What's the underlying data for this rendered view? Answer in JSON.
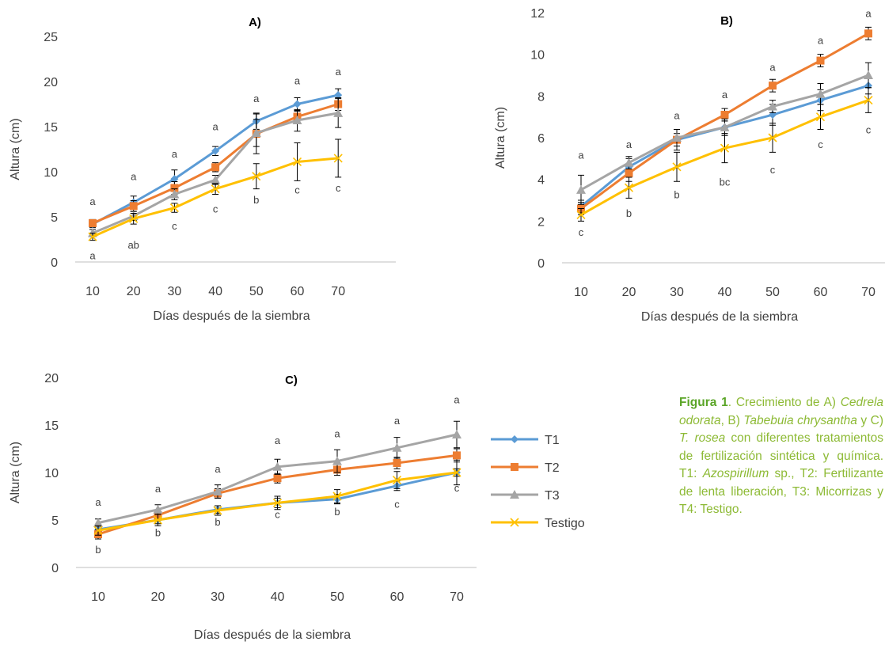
{
  "chart_data": [
    {
      "id": "A",
      "type": "line",
      "title": "A)",
      "xlabel": "Días después de la siembra",
      "ylabel": "Altura (cm)",
      "x": [
        10,
        20,
        30,
        40,
        50,
        60,
        70
      ],
      "ylim": [
        0,
        25
      ],
      "yticks": [
        0,
        5,
        10,
        15,
        20,
        25
      ],
      "series": [
        {
          "name": "T1",
          "values": [
            4.2,
            6.6,
            9.2,
            12.3,
            15.6,
            17.5,
            18.5
          ],
          "errors": [
            0.4,
            0.7,
            1.0,
            0.5,
            0.9,
            0.7,
            0.7
          ]
        },
        {
          "name": "T2",
          "values": [
            4.3,
            6.2,
            8.2,
            10.5,
            14.2,
            16.1,
            17.5
          ],
          "errors": [
            0.4,
            0.6,
            0.7,
            0.5,
            2.2,
            0.6,
            0.7
          ]
        },
        {
          "name": "T3",
          "values": [
            3.2,
            5.1,
            7.5,
            9.1,
            14.3,
            15.7,
            16.5
          ],
          "errors": [
            0.4,
            0.5,
            0.6,
            0.5,
            1.5,
            1.2,
            1.6
          ]
        },
        {
          "name": "Testigo",
          "values": [
            2.8,
            4.8,
            6.0,
            8.1,
            9.5,
            11.1,
            11.5
          ],
          "errors": [
            0.4,
            0.6,
            0.5,
            0.6,
            1.4,
            2.1,
            2.1
          ]
        }
      ],
      "annotations": [
        {
          "x": 10,
          "y": 6.3,
          "text": "a"
        },
        {
          "x": 10,
          "y": 0.3,
          "text": "a"
        },
        {
          "x": 20,
          "y": 9.1,
          "text": "a"
        },
        {
          "x": 20,
          "y": 1.5,
          "text": "ab"
        },
        {
          "x": 30,
          "y": 11.6,
          "text": "a"
        },
        {
          "x": 30,
          "y": 3.6,
          "text": "c"
        },
        {
          "x": 40,
          "y": 14.6,
          "text": "a"
        },
        {
          "x": 40,
          "y": 5.5,
          "text": "c"
        },
        {
          "x": 50,
          "y": 17.7,
          "text": "a"
        },
        {
          "x": 50,
          "y": 6.5,
          "text": "b"
        },
        {
          "x": 60,
          "y": 19.7,
          "text": "a"
        },
        {
          "x": 60,
          "y": 7.6,
          "text": "c"
        },
        {
          "x": 70,
          "y": 20.7,
          "text": "a"
        },
        {
          "x": 70,
          "y": 7.8,
          "text": "c"
        }
      ]
    },
    {
      "id": "B",
      "type": "line",
      "title": "B)",
      "xlabel": "Días después de la siembra",
      "ylabel": "Altura (cm)",
      "x": [
        10,
        20,
        30,
        40,
        50,
        60,
        70
      ],
      "ylim": [
        0,
        12
      ],
      "yticks": [
        0,
        2,
        4,
        6,
        8,
        10,
        12
      ],
      "series": [
        {
          "name": "T1",
          "values": [
            2.7,
            4.6,
            5.9,
            6.5,
            7.1,
            7.8,
            8.5
          ],
          "errors": [
            0.3,
            0.4,
            0.5,
            0.3,
            0.5,
            0.5,
            0.4
          ]
        },
        {
          "name": "T2",
          "values": [
            2.6,
            4.3,
            5.9,
            7.1,
            8.5,
            9.7,
            11.0
          ],
          "errors": [
            0.3,
            0.4,
            0.3,
            0.3,
            0.3,
            0.3,
            0.3
          ]
        },
        {
          "name": "T3",
          "values": [
            3.5,
            4.8,
            6.0,
            6.5,
            7.5,
            8.1,
            9.0
          ],
          "errors": [
            0.7,
            0.3,
            0.4,
            0.4,
            0.3,
            0.5,
            0.6
          ]
        },
        {
          "name": "Testigo",
          "values": [
            2.3,
            3.6,
            4.6,
            5.5,
            6.0,
            7.0,
            7.8
          ],
          "errors": [
            0.3,
            0.5,
            0.7,
            0.7,
            0.7,
            0.6,
            0.6
          ]
        }
      ],
      "annotations": [
        {
          "x": 10,
          "y": 5.0,
          "text": "a"
        },
        {
          "x": 10,
          "y": 1.3,
          "text": "c"
        },
        {
          "x": 20,
          "y": 5.5,
          "text": "a"
        },
        {
          "x": 20,
          "y": 2.2,
          "text": "b"
        },
        {
          "x": 30,
          "y": 6.9,
          "text": "a"
        },
        {
          "x": 30,
          "y": 3.1,
          "text": "b"
        },
        {
          "x": 40,
          "y": 7.9,
          "text": "a"
        },
        {
          "x": 40,
          "y": 3.7,
          "text": "bc"
        },
        {
          "x": 50,
          "y": 9.2,
          "text": "a"
        },
        {
          "x": 50,
          "y": 4.3,
          "text": "c"
        },
        {
          "x": 60,
          "y": 10.5,
          "text": "a"
        },
        {
          "x": 60,
          "y": 5.5,
          "text": "c"
        },
        {
          "x": 70,
          "y": 11.8,
          "text": "a"
        },
        {
          "x": 70,
          "y": 6.2,
          "text": "c"
        }
      ]
    },
    {
      "id": "C",
      "type": "line",
      "title": "C)",
      "xlabel": "Días después de la siembra",
      "ylabel": "Altura (cm)",
      "x": [
        10,
        20,
        30,
        40,
        50,
        60,
        70
      ],
      "ylim": [
        0,
        20
      ],
      "yticks": [
        0,
        5,
        10,
        15,
        20
      ],
      "legend": "right",
      "series": [
        {
          "name": "T1",
          "values": [
            4.0,
            5.0,
            6.1,
            6.8,
            7.2,
            8.6,
            10.0
          ],
          "errors": [
            0.4,
            0.4,
            0.4,
            0.5,
            0.5,
            0.5,
            0.4
          ]
        },
        {
          "name": "T2",
          "values": [
            3.5,
            5.5,
            7.8,
            9.4,
            10.3,
            11.0,
            11.8
          ],
          "errors": [
            0.5,
            0.4,
            0.5,
            0.5,
            0.6,
            0.6,
            0.7
          ]
        },
        {
          "name": "T3",
          "values": [
            4.7,
            6.1,
            8.0,
            10.6,
            11.2,
            12.6,
            14.0
          ],
          "errors": [
            0.4,
            0.5,
            0.7,
            0.8,
            1.2,
            1.1,
            1.4
          ]
        },
        {
          "name": "Testigo",
          "values": [
            3.9,
            5.0,
            6.0,
            6.8,
            7.5,
            9.2,
            10.0
          ],
          "errors": [
            0.5,
            0.6,
            0.5,
            0.7,
            0.7,
            0.9,
            1.3
          ]
        }
      ],
      "annotations": [
        {
          "x": 10,
          "y": 6.5,
          "text": "a"
        },
        {
          "x": 10,
          "y": 1.5,
          "text": "b"
        },
        {
          "x": 20,
          "y": 7.9,
          "text": "a"
        },
        {
          "x": 20,
          "y": 3.3,
          "text": "b"
        },
        {
          "x": 30,
          "y": 10.0,
          "text": "a"
        },
        {
          "x": 30,
          "y": 4.4,
          "text": "b"
        },
        {
          "x": 40,
          "y": 13.0,
          "text": "a"
        },
        {
          "x": 40,
          "y": 5.2,
          "text": "c"
        },
        {
          "x": 50,
          "y": 13.7,
          "text": "a"
        },
        {
          "x": 50,
          "y": 5.5,
          "text": "b"
        },
        {
          "x": 60,
          "y": 15.1,
          "text": "a"
        },
        {
          "x": 60,
          "y": 6.3,
          "text": "c"
        },
        {
          "x": 70,
          "y": 17.3,
          "text": "a"
        },
        {
          "x": 70,
          "y": 8.0,
          "text": "c"
        }
      ]
    }
  ],
  "colors": {
    "T1": "#5b9bd5",
    "T2": "#ed7d31",
    "T3": "#a5a5a5",
    "Testigo": "#ffc000"
  },
  "markers": {
    "T1": "diamond",
    "T2": "square",
    "T3": "triangle",
    "Testigo": "x"
  },
  "legend": {
    "items": [
      "T1",
      "T2",
      "T3",
      "Testigo"
    ]
  },
  "caption": {
    "fig": "Figura 1",
    "p1": ". Crecimiento de A) ",
    "sp1": "Cedrela odorata",
    "p2": ", B) ",
    "sp2": "Tabebuia chrysantha",
    "p3": " y C) ",
    "sp3": "T. rosea",
    "p4": " con diferentes tratamientos de fertilización sintética y química. T1: ",
    "sp4": "Azospirillum",
    "p5": " sp., T2: Fertilizante de lenta liberación, T3: Micorrizas y T4: Testigo."
  }
}
